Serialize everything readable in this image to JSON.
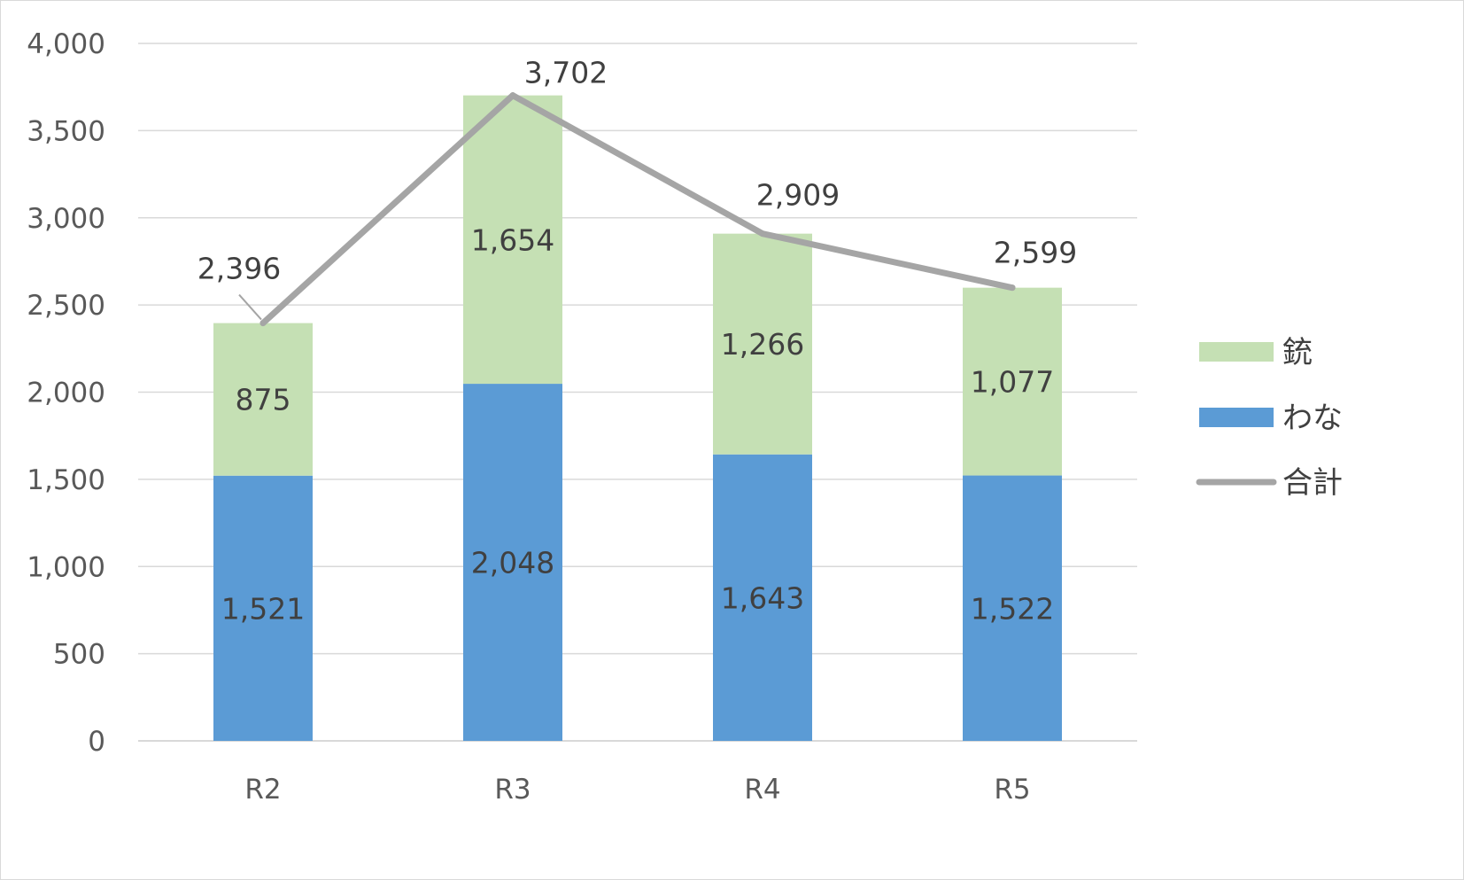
{
  "chart_data": {
    "type": "bar",
    "stacked": true,
    "categories": [
      "R2",
      "R3",
      "R4",
      "R5"
    ],
    "series": [
      {
        "name": "わな",
        "kind": "bar",
        "color": "#5b9bd5",
        "values": [
          1521,
          2048,
          1643,
          1522
        ],
        "labels": [
          "1,521",
          "2,048",
          "1,643",
          "1,522"
        ]
      },
      {
        "name": "銃",
        "kind": "bar",
        "color": "#c5e0b4",
        "values": [
          875,
          1654,
          1266,
          1077
        ],
        "labels": [
          "875",
          "1,654",
          "1,266",
          "1,077"
        ]
      },
      {
        "name": "合計",
        "kind": "line",
        "color": "#a5a5a5",
        "values": [
          2396,
          3702,
          2909,
          2599
        ],
        "labels": [
          "2,396",
          "3,702",
          "2,909",
          "2,599"
        ]
      }
    ],
    "yticks": [
      "0",
      "500",
      "1,000",
      "1,500",
      "2,000",
      "2,500",
      "3,000",
      "3,500",
      "4,000"
    ],
    "ylim": [
      0,
      4000
    ],
    "grid": true,
    "legend": "right",
    "legend_order": [
      "銃",
      "わな",
      "合計"
    ],
    "title": "",
    "xlabel": "",
    "ylabel": ""
  }
}
